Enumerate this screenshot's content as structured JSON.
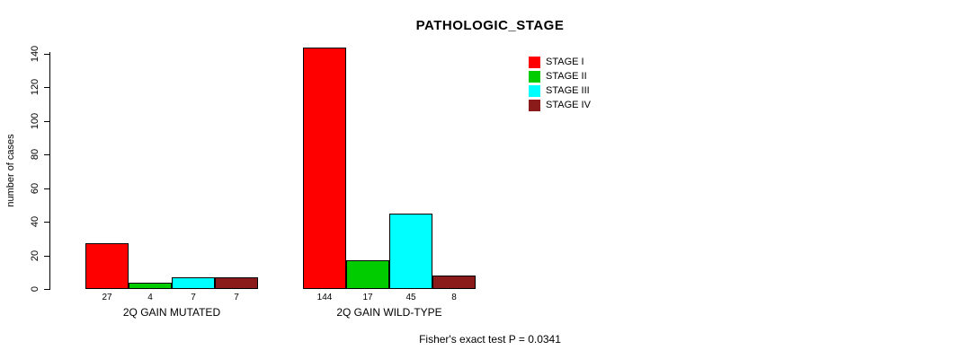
{
  "chart_data": {
    "type": "bar",
    "title": "PATHOLOGIC_STAGE",
    "ylabel": "number of cases",
    "xlabel": "",
    "ylim": [
      0,
      140
    ],
    "yticks": [
      0,
      20,
      40,
      60,
      80,
      100,
      120,
      140
    ],
    "grid": false,
    "legend_position": "top-right",
    "categories": [
      "2Q GAIN MUTATED",
      "2Q GAIN WILD-TYPE"
    ],
    "series": [
      {
        "name": "STAGE I",
        "color": "#FF0000",
        "values": [
          27,
          144
        ]
      },
      {
        "name": "STAGE II",
        "color": "#00CC00",
        "values": [
          4,
          17
        ]
      },
      {
        "name": "STAGE III",
        "color": "#00FFFF",
        "values": [
          7,
          45
        ]
      },
      {
        "name": "STAGE IV",
        "color": "#8B1A1A",
        "values": [
          7,
          8
        ]
      }
    ],
    "footnote": "Fisher's exact test P = 0.0341"
  }
}
